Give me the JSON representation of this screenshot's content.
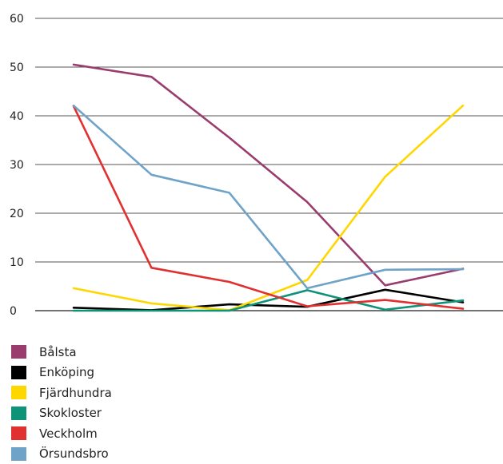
{
  "chart_data": {
    "type": "line",
    "title": "",
    "xlabel": "",
    "ylabel": "",
    "ylim": [
      0,
      60
    ],
    "yticks": [
      "0",
      "10",
      "20",
      "30",
      "40",
      "50",
      "60"
    ],
    "grid": true,
    "legend_position": "bottom-left",
    "x_points": 6,
    "series": [
      {
        "name": "Bålsta",
        "color": "#9a3d6e",
        "values": [
          50.5,
          48,
          35.5,
          22.3,
          5.2,
          8.6
        ]
      },
      {
        "name": "Enköping",
        "color": "#000000",
        "values": [
          0.6,
          0.1,
          1.3,
          0.8,
          4.3,
          1.7
        ]
      },
      {
        "name": "Fjärdhundra",
        "color": "#ffd700",
        "values": [
          4.6,
          1.5,
          0.1,
          6.3,
          27.5,
          42.1
        ]
      },
      {
        "name": "Skokloster",
        "color": "#0f9378",
        "values": [
          0,
          0,
          0,
          4.2,
          0.2,
          2.1
        ]
      },
      {
        "name": "Veckholm",
        "color": "#e03030",
        "values": [
          42,
          8.8,
          5.9,
          0.9,
          2.2,
          0.4
        ]
      },
      {
        "name": "Örsundsbro",
        "color": "#6fa3c8",
        "values": [
          42.1,
          27.9,
          24.2,
          4.6,
          8.4,
          8.5
        ]
      }
    ]
  }
}
